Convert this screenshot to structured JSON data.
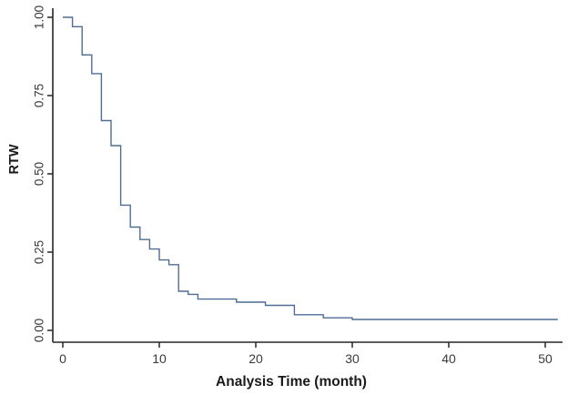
{
  "page": {
    "background": "#ffffff"
  },
  "chart_data": {
    "type": "line",
    "chart_kind": "kaplan-meier-step-survival",
    "title": "",
    "xlabel": "Analysis Time (month)",
    "ylabel": "RTW",
    "grid": false,
    "legend_position": "none",
    "xlim": [
      0,
      52
    ],
    "ylim": [
      0,
      1.0
    ],
    "x_ticks": [
      0,
      10,
      20,
      30,
      40,
      50
    ],
    "y_ticks": [
      {
        "label": "0.00",
        "value": 0.0
      },
      {
        "label": "0.25",
        "value": 0.25
      },
      {
        "label": "0.50",
        "value": 0.5
      },
      {
        "label": "0.75",
        "value": 0.75
      },
      {
        "label": "1.00",
        "value": 1.0
      }
    ],
    "axis_color": "#262626",
    "tick_label_color": "#3a3a3a",
    "line_color": "#4f6d94",
    "series": [
      {
        "name": "RTW",
        "color": "#4f6d94",
        "steps": [
          [
            0,
            1.0
          ],
          [
            1,
            0.97
          ],
          [
            2,
            0.88
          ],
          [
            3,
            0.82
          ],
          [
            4,
            0.67
          ],
          [
            5,
            0.59
          ],
          [
            6,
            0.4
          ],
          [
            7,
            0.33
          ],
          [
            8,
            0.29
          ],
          [
            9,
            0.26
          ],
          [
            10,
            0.225
          ],
          [
            11,
            0.21
          ],
          [
            12,
            0.125
          ],
          [
            13,
            0.115
          ],
          [
            14,
            0.1
          ],
          [
            18,
            0.09
          ],
          [
            21,
            0.08
          ],
          [
            24,
            0.05
          ],
          [
            27,
            0.04
          ],
          [
            30,
            0.035
          ],
          [
            51.3,
            0.035
          ]
        ]
      }
    ]
  }
}
